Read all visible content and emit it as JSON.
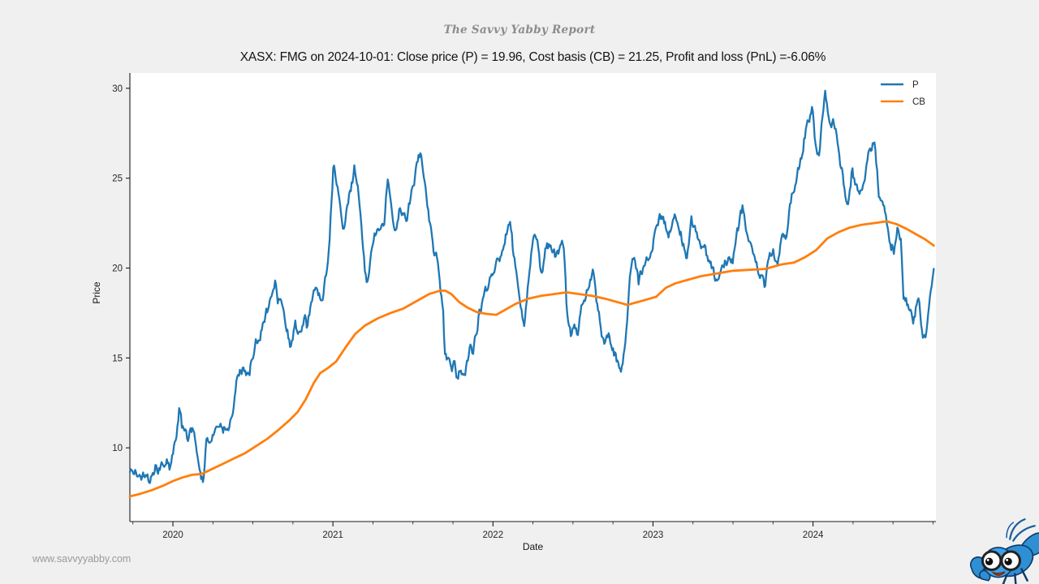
{
  "page": {
    "report_title": "The Savvy Yabby Report",
    "watermark": "www.savvyyabby.com",
    "background_color": "#f0f0f0",
    "plot_background_color": "#ffffff"
  },
  "chart_data": {
    "type": "line",
    "title": "XASX: FMG on 2024-10-01: Close price (P) = 19.96, Cost basis (CB) = 21.25, Profit and loss (PnL) =-6.06%",
    "xlabel": "Date",
    "ylabel": "Price",
    "symbol": "XASX: FMG",
    "as_of_date": "2024-10-01",
    "close_price": 19.96,
    "cost_basis": 21.25,
    "pnl_pct": -6.06,
    "grid": false,
    "legend_position": "upper right",
    "x_unit": "decimal_year",
    "xlim": [
      2019.731,
      2024.768
    ],
    "ylim": [
      5.9,
      30.85
    ],
    "x_major_ticks": [
      {
        "t": 2020,
        "label": "2020"
      },
      {
        "t": 2021,
        "label": "2021"
      },
      {
        "t": 2022,
        "label": "2022"
      },
      {
        "t": 2023,
        "label": "2023"
      },
      {
        "t": 2024,
        "label": "2024"
      }
    ],
    "x_minor_ticks": [
      2019.75,
      2020.25,
      2020.5,
      2020.75,
      2021.25,
      2021.5,
      2021.75,
      2022.25,
      2022.5,
      2022.75,
      2023.25,
      2023.5,
      2023.75,
      2024.25,
      2024.5,
      2024.75
    ],
    "y_ticks": [
      10,
      15,
      20,
      25,
      30
    ],
    "axis_color": "#1a1a1a",
    "tick_label_color": "#262626",
    "series": [
      {
        "name": "P",
        "color": "#1f77b4",
        "width": 2.3,
        "style": "noisy-daily",
        "points": [
          [
            2019.731,
            8.6
          ],
          [
            2019.76,
            8.85
          ],
          [
            2019.79,
            8.1
          ],
          [
            2019.82,
            8.45
          ],
          [
            2019.855,
            8.05
          ],
          [
            2019.89,
            9.15
          ],
          [
            2019.92,
            8.95
          ],
          [
            2019.955,
            9.65
          ],
          [
            2019.985,
            9.2
          ],
          [
            2020.02,
            10.8
          ],
          [
            2020.04,
            12.5
          ],
          [
            2020.055,
            11.4
          ],
          [
            2020.07,
            11.05
          ],
          [
            2020.09,
            10.65
          ],
          [
            2020.115,
            10.9
          ],
          [
            2020.14,
            10.65
          ],
          [
            2020.155,
            9.6
          ],
          [
            2020.175,
            8.5
          ],
          [
            2020.19,
            8.2
          ],
          [
            2020.21,
            10.3
          ],
          [
            2020.23,
            9.9
          ],
          [
            2020.255,
            10.7
          ],
          [
            2020.285,
            11.25
          ],
          [
            2020.315,
            10.9
          ],
          [
            2020.345,
            11.1
          ],
          [
            2020.375,
            11.7
          ],
          [
            2020.4,
            13.6
          ],
          [
            2020.425,
            13.9
          ],
          [
            2020.445,
            14.45
          ],
          [
            2020.47,
            13.9
          ],
          [
            2020.5,
            14.9
          ],
          [
            2020.52,
            15.9
          ],
          [
            2020.545,
            16.3
          ],
          [
            2020.58,
            17.3
          ],
          [
            2020.615,
            18.3
          ],
          [
            2020.64,
            19.25
          ],
          [
            2020.655,
            17.9
          ],
          [
            2020.67,
            18.35
          ],
          [
            2020.695,
            17.4
          ],
          [
            2020.72,
            16.15
          ],
          [
            2020.735,
            15.6
          ],
          [
            2020.765,
            16.7
          ],
          [
            2020.8,
            16.2
          ],
          [
            2020.825,
            17.3
          ],
          [
            2020.84,
            16.5
          ],
          [
            2020.865,
            18.0
          ],
          [
            2020.885,
            18.5
          ],
          [
            2020.935,
            18.5
          ],
          [
            2020.96,
            19.5
          ],
          [
            2020.98,
            21.6
          ],
          [
            2021.005,
            25.8
          ],
          [
            2021.025,
            24.6
          ],
          [
            2021.065,
            21.8
          ],
          [
            2021.1,
            23.6
          ],
          [
            2021.135,
            25.5
          ],
          [
            2021.165,
            23.8
          ],
          [
            2021.19,
            20.8
          ],
          [
            2021.21,
            19.1
          ],
          [
            2021.26,
            21.5
          ],
          [
            2021.32,
            22.4
          ],
          [
            2021.34,
            24.8
          ],
          [
            2021.39,
            22.3
          ],
          [
            2021.42,
            23.4
          ],
          [
            2021.455,
            22.6
          ],
          [
            2021.5,
            24.3
          ],
          [
            2021.546,
            26.3
          ],
          [
            2021.575,
            24.9
          ],
          [
            2021.607,
            22.4
          ],
          [
            2021.63,
            21.2
          ],
          [
            2021.647,
            21.0
          ],
          [
            2021.673,
            18.8
          ],
          [
            2021.688,
            17.6
          ],
          [
            2021.698,
            15.2
          ],
          [
            2021.724,
            14.7
          ],
          [
            2021.745,
            14.25
          ],
          [
            2021.762,
            14.8
          ],
          [
            2021.77,
            13.9
          ],
          [
            2021.8,
            14.5
          ],
          [
            2021.825,
            14.05
          ],
          [
            2021.86,
            15.8
          ],
          [
            2021.876,
            15.2
          ],
          [
            2021.91,
            17.5
          ],
          [
            2021.945,
            18.6
          ],
          [
            2021.97,
            19.3
          ],
          [
            2022.0,
            19.6
          ],
          [
            2022.035,
            20.3
          ],
          [
            2022.07,
            21.3
          ],
          [
            2022.104,
            22.8
          ],
          [
            2022.13,
            20.5
          ],
          [
            2022.155,
            19.2
          ],
          [
            2022.175,
            17.9
          ],
          [
            2022.195,
            17.1
          ],
          [
            2022.22,
            19.1
          ],
          [
            2022.25,
            21.7
          ],
          [
            2022.28,
            21.3
          ],
          [
            2022.305,
            19.6
          ],
          [
            2022.33,
            21.0
          ],
          [
            2022.36,
            21.6
          ],
          [
            2022.39,
            20.8
          ],
          [
            2022.42,
            21.3
          ],
          [
            2022.44,
            21.5
          ],
          [
            2022.46,
            18.0
          ],
          [
            2022.475,
            16.8
          ],
          [
            2022.49,
            16.2
          ],
          [
            2022.51,
            16.9
          ],
          [
            2022.53,
            16.1
          ],
          [
            2022.555,
            18.2
          ],
          [
            2022.59,
            18.5
          ],
          [
            2022.625,
            19.7
          ],
          [
            2022.655,
            17.7
          ],
          [
            2022.69,
            15.9
          ],
          [
            2022.72,
            16.5
          ],
          [
            2022.75,
            15.5
          ],
          [
            2022.77,
            15.1
          ],
          [
            2022.8,
            14.65
          ],
          [
            2022.825,
            15.3
          ],
          [
            2022.86,
            19.8
          ],
          [
            2022.885,
            20.6
          ],
          [
            2022.91,
            19.3
          ],
          [
            2022.94,
            19.9
          ],
          [
            2022.97,
            20.6
          ],
          [
            2023.0,
            21.3
          ],
          [
            2023.02,
            22.3
          ],
          [
            2023.05,
            22.85
          ],
          [
            2023.075,
            22.4
          ],
          [
            2023.1,
            21.9
          ],
          [
            2023.13,
            23.2
          ],
          [
            2023.155,
            22.4
          ],
          [
            2023.18,
            21.5
          ],
          [
            2023.21,
            20.7
          ],
          [
            2023.24,
            22.6
          ],
          [
            2023.27,
            21.9
          ],
          [
            2023.32,
            21.0
          ],
          [
            2023.37,
            20.1
          ],
          [
            2023.4,
            18.95
          ],
          [
            2023.43,
            20.2
          ],
          [
            2023.46,
            20.4
          ],
          [
            2023.5,
            20.3
          ],
          [
            2023.53,
            22.0
          ],
          [
            2023.56,
            23.6
          ],
          [
            2023.59,
            21.8
          ],
          [
            2023.62,
            21.0
          ],
          [
            2023.655,
            20.1
          ],
          [
            2023.68,
            19.9
          ],
          [
            2023.7,
            19.1
          ],
          [
            2023.72,
            20.4
          ],
          [
            2023.75,
            21.0
          ],
          [
            2023.78,
            20.4
          ],
          [
            2023.8,
            21.5
          ],
          [
            2023.83,
            21.9
          ],
          [
            2023.85,
            23.2
          ],
          [
            2023.875,
            24.4
          ],
          [
            2023.9,
            24.9
          ],
          [
            2023.93,
            26.5
          ],
          [
            2023.955,
            27.7
          ],
          [
            2023.98,
            28.6
          ],
          [
            2023.995,
            29.3
          ],
          [
            2024.015,
            27.1
          ],
          [
            2024.04,
            26.5
          ],
          [
            2024.075,
            29.9
          ],
          [
            2024.1,
            28.4
          ],
          [
            2024.12,
            28.0
          ],
          [
            2024.14,
            27.9
          ],
          [
            2024.165,
            26.2
          ],
          [
            2024.18,
            25.6
          ],
          [
            2024.2,
            24.2
          ],
          [
            2024.22,
            23.55
          ],
          [
            2024.245,
            25.7
          ],
          [
            2024.27,
            24.6
          ],
          [
            2024.295,
            24.2
          ],
          [
            2024.32,
            25.0
          ],
          [
            2024.345,
            26.2
          ],
          [
            2024.385,
            27.2
          ],
          [
            2024.41,
            24.2
          ],
          [
            2024.445,
            23.2
          ],
          [
            2024.46,
            22.4
          ],
          [
            2024.487,
            21.3
          ],
          [
            2024.507,
            21.0
          ],
          [
            2024.527,
            22.1
          ],
          [
            2024.55,
            21.5
          ],
          [
            2024.565,
            18.5
          ],
          [
            2024.6,
            18.05
          ],
          [
            2024.625,
            16.7
          ],
          [
            2024.66,
            18.4
          ],
          [
            2024.685,
            15.8
          ],
          [
            2024.7,
            16.1
          ],
          [
            2024.72,
            17.4
          ],
          [
            2024.74,
            18.6
          ],
          [
            2024.755,
            19.96
          ]
        ]
      },
      {
        "name": "CB",
        "color": "#ff7f0e",
        "width": 2.8,
        "style": "smooth",
        "points": [
          [
            2019.731,
            7.3
          ],
          [
            2019.8,
            7.45
          ],
          [
            2019.87,
            7.65
          ],
          [
            2019.94,
            7.9
          ],
          [
            2020.0,
            8.15
          ],
          [
            2020.06,
            8.35
          ],
          [
            2020.12,
            8.5
          ],
          [
            2020.18,
            8.55
          ],
          [
            2020.24,
            8.8
          ],
          [
            2020.31,
            9.1
          ],
          [
            2020.38,
            9.4
          ],
          [
            2020.45,
            9.7
          ],
          [
            2020.52,
            10.1
          ],
          [
            2020.59,
            10.5
          ],
          [
            2020.66,
            11.0
          ],
          [
            2020.73,
            11.55
          ],
          [
            2020.78,
            12.0
          ],
          [
            2020.83,
            12.7
          ],
          [
            2020.88,
            13.6
          ],
          [
            2020.92,
            14.15
          ],
          [
            2020.97,
            14.45
          ],
          [
            2021.02,
            14.8
          ],
          [
            2021.08,
            15.6
          ],
          [
            2021.14,
            16.35
          ],
          [
            2021.2,
            16.8
          ],
          [
            2021.28,
            17.2
          ],
          [
            2021.36,
            17.5
          ],
          [
            2021.44,
            17.75
          ],
          [
            2021.52,
            18.15
          ],
          [
            2021.6,
            18.55
          ],
          [
            2021.66,
            18.72
          ],
          [
            2021.7,
            18.75
          ],
          [
            2021.74,
            18.55
          ],
          [
            2021.79,
            18.1
          ],
          [
            2021.84,
            17.8
          ],
          [
            2021.9,
            17.55
          ],
          [
            2021.96,
            17.45
          ],
          [
            2022.02,
            17.4
          ],
          [
            2022.08,
            17.7
          ],
          [
            2022.14,
            18.0
          ],
          [
            2022.22,
            18.3
          ],
          [
            2022.3,
            18.45
          ],
          [
            2022.38,
            18.55
          ],
          [
            2022.46,
            18.65
          ],
          [
            2022.54,
            18.55
          ],
          [
            2022.62,
            18.45
          ],
          [
            2022.7,
            18.3
          ],
          [
            2022.78,
            18.1
          ],
          [
            2022.84,
            17.95
          ],
          [
            2022.9,
            18.1
          ],
          [
            2022.96,
            18.25
          ],
          [
            2023.02,
            18.4
          ],
          [
            2023.08,
            18.9
          ],
          [
            2023.14,
            19.15
          ],
          [
            2023.22,
            19.35
          ],
          [
            2023.3,
            19.55
          ],
          [
            2023.4,
            19.7
          ],
          [
            2023.5,
            19.85
          ],
          [
            2023.6,
            19.9
          ],
          [
            2023.7,
            19.95
          ],
          [
            2023.8,
            20.2
          ],
          [
            2023.88,
            20.3
          ],
          [
            2023.95,
            20.6
          ],
          [
            2024.02,
            21.0
          ],
          [
            2024.09,
            21.65
          ],
          [
            2024.16,
            22.0
          ],
          [
            2024.23,
            22.25
          ],
          [
            2024.3,
            22.4
          ],
          [
            2024.38,
            22.5
          ],
          [
            2024.46,
            22.6
          ],
          [
            2024.52,
            22.45
          ],
          [
            2024.58,
            22.2
          ],
          [
            2024.64,
            21.9
          ],
          [
            2024.7,
            21.6
          ],
          [
            2024.755,
            21.25
          ]
        ]
      }
    ]
  }
}
